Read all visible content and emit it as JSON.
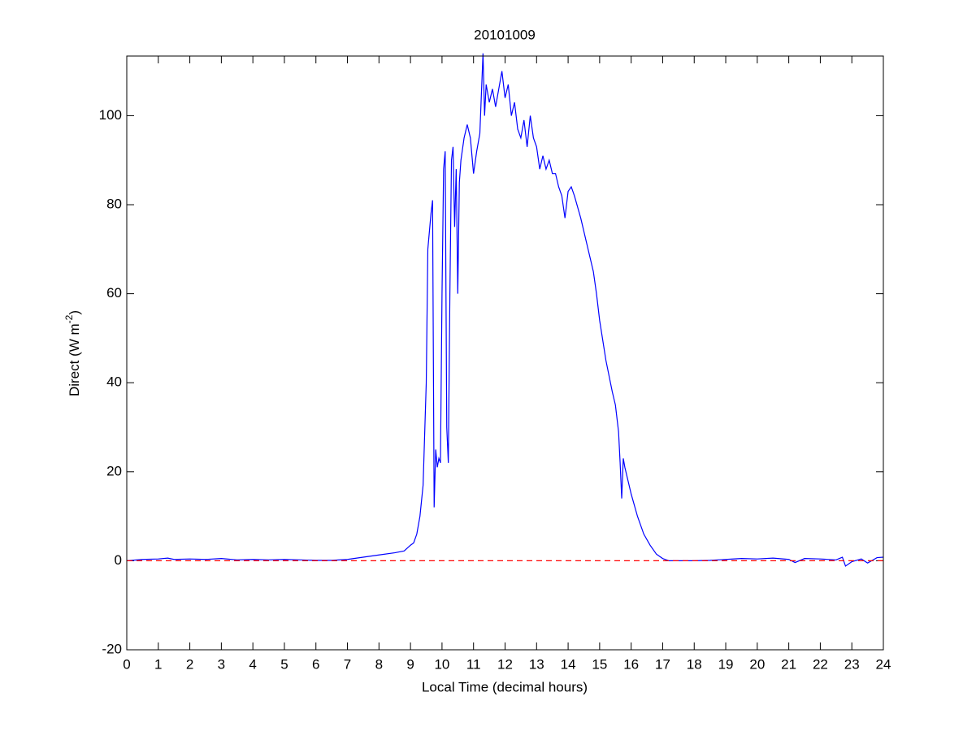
{
  "chart_data": {
    "type": "line",
    "title": "20101009",
    "xlabel": "Local Time (decimal hours)",
    "ylabel": {
      "text": "Direct (W m",
      "superscript": "-2",
      "suffix": ")"
    },
    "xlim": [
      0,
      24
    ],
    "ylim": [
      -20,
      113.4
    ],
    "xticks": [
      0,
      1,
      2,
      3,
      4,
      5,
      6,
      7,
      8,
      9,
      10,
      11,
      12,
      13,
      14,
      15,
      16,
      17,
      18,
      19,
      20,
      21,
      22,
      23,
      24
    ],
    "yticks": [
      -20,
      0,
      20,
      40,
      60,
      80,
      100
    ],
    "grid": false,
    "series": [
      {
        "color": "#0000ff",
        "dash": false,
        "x": [
          0,
          0.5,
          1,
          1.3,
          1.5,
          2,
          2.5,
          3,
          3.5,
          4,
          4.5,
          5,
          5.5,
          6,
          6.5,
          7,
          7.5,
          8,
          8.5,
          8.8,
          9,
          9.1,
          9.2,
          9.3,
          9.4,
          9.5,
          9.55,
          9.65,
          9.7,
          9.75,
          9.8,
          9.85,
          9.9,
          9.95,
          10,
          10.05,
          10.1,
          10.15,
          10.2,
          10.25,
          10.3,
          10.35,
          10.4,
          10.45,
          10.5,
          10.55,
          10.6,
          10.7,
          10.8,
          10.9,
          11,
          11.1,
          11.2,
          11.25,
          11.3,
          11.35,
          11.4,
          11.5,
          11.6,
          11.7,
          11.8,
          11.9,
          12,
          12.1,
          12.2,
          12.3,
          12.4,
          12.5,
          12.6,
          12.7,
          12.8,
          12.9,
          13,
          13.1,
          13.2,
          13.3,
          13.4,
          13.5,
          13.6,
          13.7,
          13.8,
          13.9,
          14,
          14.1,
          14.2,
          14.4,
          14.6,
          14.8,
          14.9,
          15,
          15.2,
          15.4,
          15.5,
          15.6,
          15.65,
          15.7,
          15.75,
          15.8,
          16,
          16.2,
          16.4,
          16.6,
          16.8,
          17,
          17.2,
          17.5,
          18,
          18.5,
          19,
          19.5,
          20,
          20.5,
          21,
          21.2,
          21.5,
          22,
          22.5,
          22.7,
          22.8,
          23,
          23.3,
          23.5,
          23.8,
          24
        ],
        "values": [
          0,
          0.3,
          0.4,
          0.6,
          0.3,
          0.4,
          0.3,
          0.5,
          0.2,
          0.3,
          0.2,
          0.3,
          0.2,
          0.1,
          0.1,
          0.3,
          0.8,
          1.3,
          1.8,
          2.2,
          3.5,
          4,
          6,
          10,
          17,
          40,
          70,
          78,
          81,
          12,
          25,
          21,
          23,
          22,
          60,
          88,
          92,
          30,
          22,
          60,
          90,
          93,
          75,
          88,
          60,
          85,
          90,
          95,
          98,
          95,
          87,
          92,
          96,
          105,
          114,
          100,
          107,
          103,
          106,
          102,
          106,
          110,
          104,
          107,
          100,
          103,
          97,
          95,
          99,
          93,
          100,
          95,
          93,
          88,
          91,
          88,
          90,
          87,
          87,
          84,
          82,
          77,
          83,
          84,
          82,
          77,
          71,
          65,
          60,
          54,
          45,
          38,
          35,
          29,
          22,
          14,
          23,
          21,
          15,
          10,
          6,
          3.5,
          1.5,
          0.5,
          0,
          0,
          0,
          0.1,
          0.3,
          0.5,
          0.4,
          0.6,
          0.3,
          -0.4,
          0.5,
          0.4,
          0.2,
          0.8,
          -1.2,
          -0.2,
          0.4,
          -0.5,
          0.7,
          0.8
        ]
      },
      {
        "color": "#ff0000",
        "dash": true,
        "x": [
          0,
          24
        ],
        "values": [
          0,
          0
        ]
      }
    ]
  }
}
